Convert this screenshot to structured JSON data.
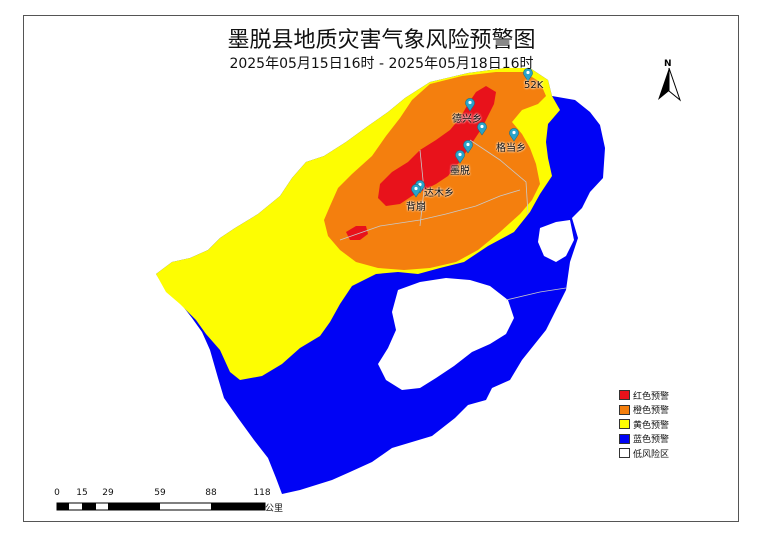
{
  "title": "墨脱县地质灾害气象风险预警图",
  "subtitle": "2025年05月15日16时 - 2025年05月18日16时",
  "places": {
    "p52k": "52K",
    "beibeng": "背崩",
    "dexing": "德兴乡",
    "motuo": "墨脱",
    "gedang": "格当乡",
    "damu": "达木乡",
    "beibeng_label": "背崩"
  },
  "legend": [
    {
      "label": "红色预警",
      "color": "#e8121b"
    },
    {
      "label": "橙色预警",
      "color": "#f47f0e"
    },
    {
      "label": "黄色预警",
      "color": "#fdfd02"
    },
    {
      "label": "蓝色预警",
      "color": "#0003f5"
    },
    {
      "label": "低风险区",
      "color": "#ffffff"
    }
  ],
  "scale": {
    "ticks": [
      "0",
      "15",
      "29",
      "59",
      "88",
      "118"
    ],
    "unit": "公里"
  },
  "north": "N",
  "colors": {
    "red": "#e8121b",
    "orange": "#f47f0e",
    "yellow": "#fdfd02",
    "blue": "#0003f5",
    "pin": "#2aa3c9"
  }
}
